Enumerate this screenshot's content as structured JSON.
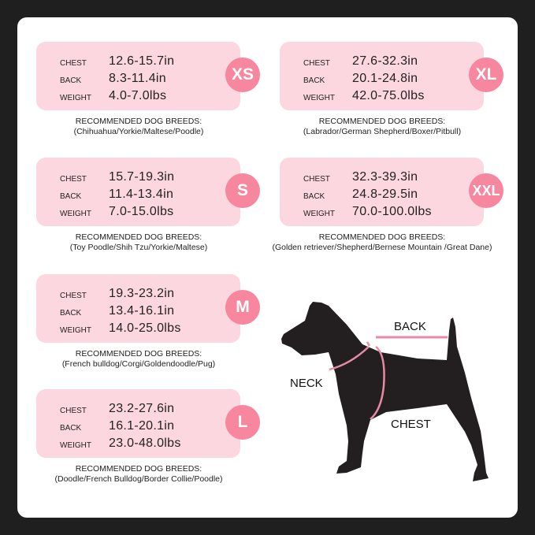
{
  "sizes": [
    {
      "size": "XS",
      "chest": "12.6-15.7in",
      "back": "8.3-11.4in",
      "weight": "4.0-7.0lbs",
      "breeds_title": "RECOMMENDED DOG BREEDS:",
      "breeds": "(Chihuahua/Yorkie/Maltese/Poodle)"
    },
    {
      "size": "S",
      "chest": "15.7-19.3in",
      "back": "11.4-13.4in",
      "weight": "7.0-15.0lbs",
      "breeds_title": "RECOMMENDED DOG BREEDS:",
      "breeds": "(Toy Poodle/Shih Tzu/Yorkie/Maltese)"
    },
    {
      "size": "M",
      "chest": "19.3-23.2in",
      "back": "13.4-16.1in",
      "weight": "14.0-25.0lbs",
      "breeds_title": "RECOMMENDED DOG BREEDS:",
      "breeds": "(French bulldog/Corgi/Goldendoodle/Pug)"
    },
    {
      "size": "L",
      "chest": "23.2-27.6in",
      "back": "16.1-20.1in",
      "weight": "23.0-48.0lbs",
      "breeds_title": "RECOMMENDED DOG BREEDS:",
      "breeds": "(Doodle/French Bulldog/Border Collie/Poodle)"
    },
    {
      "size": "XL",
      "chest": "27.6-32.3in",
      "back": "20.1-24.8in",
      "weight": "42.0-75.0lbs",
      "breeds_title": "RECOMMENDED DOG BREEDS:",
      "breeds": "(Labrador/German Shepherd/Boxer/Pitbull)"
    },
    {
      "size": "XXL",
      "chest": "32.3-39.3in",
      "back": "24.8-29.5in",
      "weight": "70.0-100.0lbs",
      "breeds_title": "RECOMMENDED DOG BREEDS:",
      "breeds": "(Golden retriever/Shepherd/Bernese Mountain /Great Dane)"
    }
  ],
  "labels": {
    "chest": "CHEST",
    "back": "BACK",
    "weight": "WEIGHT"
  },
  "diagram": {
    "back": "BACK",
    "neck": "NECK",
    "chest": "CHEST"
  },
  "colors": {
    "card": "#fcd7e0",
    "badge": "#f7879f",
    "measure_line": "#e88aa5",
    "dog": "#231f20"
  }
}
